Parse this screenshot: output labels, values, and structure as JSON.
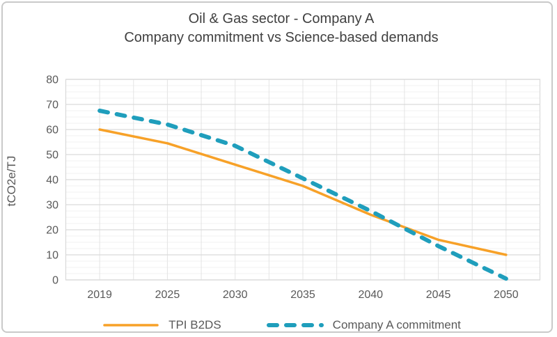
{
  "title": "Oil & Gas sector - Company A",
  "subtitle": "Company commitment vs Science-based demands",
  "chart_data": {
    "type": "line",
    "title": "Oil & Gas sector - Company A",
    "subtitle": "Company commitment vs Science-based demands",
    "categories": [
      "2019",
      "2025",
      "2030",
      "2035",
      "2040",
      "2045",
      "2050"
    ],
    "series": [
      {
        "name": "TPI B2DS",
        "color": "#F7A128",
        "line_style": "solid",
        "values": [
          60,
          54.5,
          46,
          37.5,
          26,
          16,
          10
        ]
      },
      {
        "name": "Company A commitment",
        "color": "#1F9EBC",
        "line_style": "dashed",
        "values": [
          67.5,
          62,
          53.5,
          40.5,
          27.5,
          13.5,
          0.5
        ]
      }
    ],
    "xlabel": "",
    "ylabel": "tCO2e/TJ",
    "ylim": [
      0,
      80
    ],
    "ytick_step": 10,
    "minor_ytick_step": 2.5,
    "grid": true,
    "legend_position": "bottom"
  },
  "colors": {
    "title_text": "#404040",
    "axis_text": "#595959",
    "grid_major": "#d9d9d9",
    "grid_minor": "#f1f1f1",
    "grid_vertical": "#e4e4e4",
    "plot_border": "#d9d9d9",
    "frame_border": "#c9c9c9"
  }
}
